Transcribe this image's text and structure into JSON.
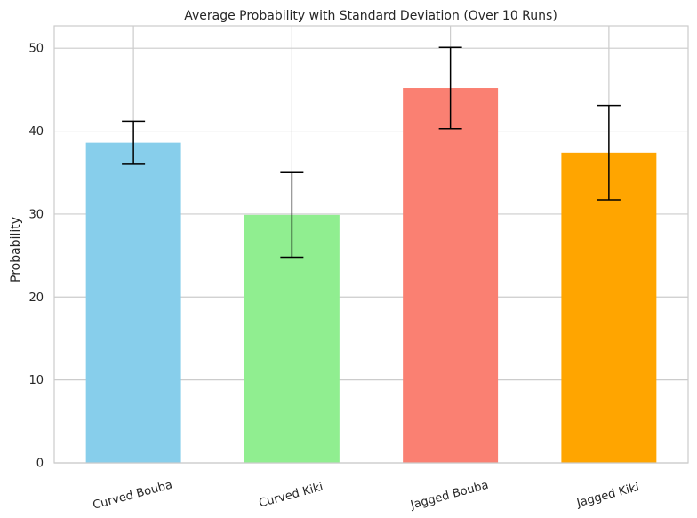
{
  "chart_data": {
    "type": "bar",
    "title": "Average Probability with Standard Deviation (Over 10 Runs)",
    "xlabel": "",
    "ylabel": "Probability",
    "categories": [
      "Curved Bouba",
      "Curved Kiki",
      "Jagged Bouba",
      "Jagged Kiki"
    ],
    "values": [
      38.6,
      29.9,
      45.2,
      37.4
    ],
    "errors": [
      2.6,
      5.1,
      4.9,
      5.7
    ],
    "colors": [
      "#87ceeb",
      "#90ee90",
      "#fa8072",
      "#ffa500"
    ],
    "ylim": [
      0,
      52.7
    ],
    "yticks": [
      0,
      10,
      20,
      30,
      40,
      50
    ],
    "grid": true
  }
}
